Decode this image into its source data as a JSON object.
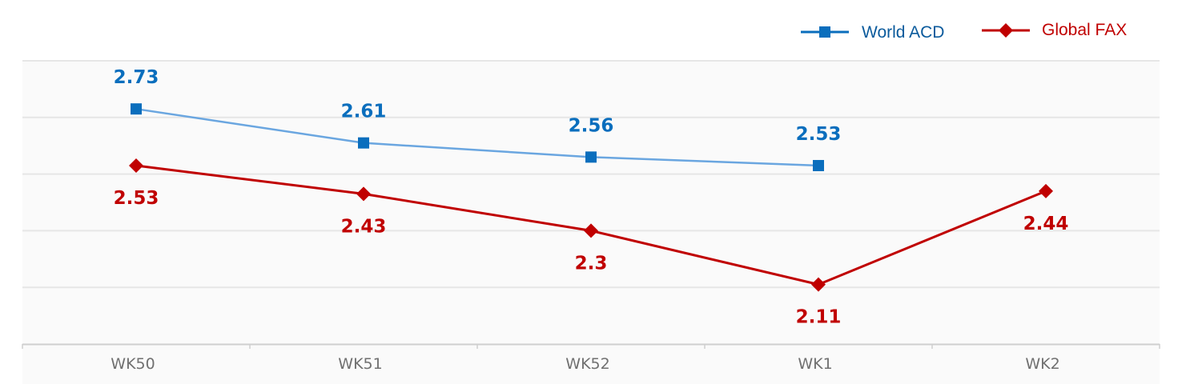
{
  "chart_data": {
    "type": "line",
    "categories": [
      "WK50",
      "WK51",
      "WK52",
      "WK1",
      "WK2"
    ],
    "series": [
      {
        "name": "World ACD",
        "values": [
          2.73,
          2.61,
          2.56,
          2.53,
          null
        ],
        "color": "#0a6ebd",
        "line_color": "#6aa6e0",
        "marker": "square",
        "label_position": "above"
      },
      {
        "name": "Global FAX",
        "values": [
          2.53,
          2.43,
          2.3,
          2.11,
          2.44
        ],
        "color": "#c00000",
        "line_color": "#c00000",
        "marker": "diamond",
        "label_position": "below"
      }
    ],
    "ylim": [
      1.9,
      2.9
    ],
    "grid": true,
    "legend": "top-right",
    "axis_label_color": "#707070",
    "gridline_color": "#e6e6e6",
    "plot_background": "#fafafa"
  }
}
